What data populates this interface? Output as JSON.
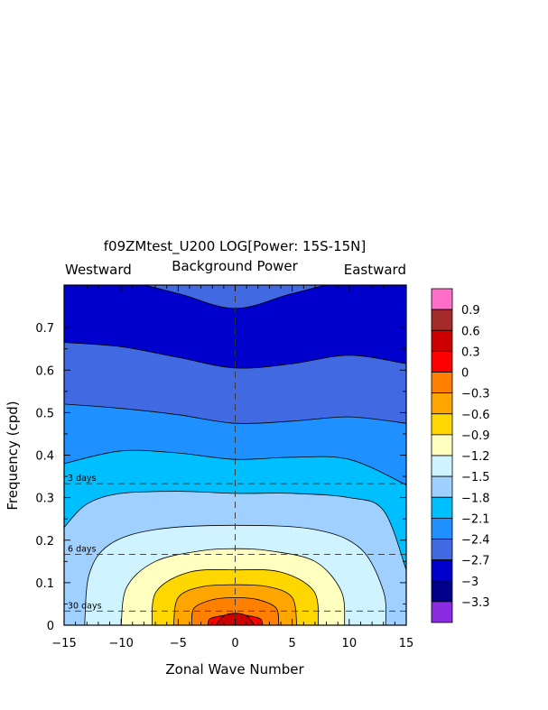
{
  "chart_data": {
    "type": "heatmap",
    "title": "f09ZMtest_U200 LOG[Power: 15S-15N]",
    "subtitle": "Background Power",
    "left_label": "Westward",
    "right_label": "Eastward",
    "xlabel": "Zonal Wave Number",
    "ylabel": "Frequency (cpd)",
    "xlim": [
      -15,
      15
    ],
    "ylim": [
      0,
      0.8
    ],
    "x_ticks": [
      "−15",
      "−10",
      "−5",
      "0",
      "5",
      "10",
      "15"
    ],
    "y_ticks": [
      "0",
      "0.1",
      "0.2",
      "0.3",
      "0.4",
      "0.5",
      "0.6",
      "0.7"
    ],
    "period_lines": [
      {
        "label": "3 days",
        "frequency": 0.333
      },
      {
        "label": "6 days",
        "frequency": 0.1667
      },
      {
        "label": "30 days",
        "frequency": 0.0333
      }
    ],
    "colorbar": {
      "labels": [
        "0.9",
        "0.6",
        "0.3",
        "0",
        "−0.3",
        "−0.6",
        "−0.9",
        "−1.2",
        "−1.5",
        "−1.8",
        "−2.1",
        "−2.4",
        "−2.7",
        "−3",
        "−3.3"
      ],
      "colors": [
        "#ff6ec7",
        "#a52a2a",
        "#cd0000",
        "#ff0000",
        "#ff7f00",
        "#ffa500",
        "#ffd700",
        "#ffffc0",
        "#d0f4ff",
        "#a0d0ff",
        "#00bfff",
        "#1e90ff",
        "#4169e1",
        "#0000cd",
        "#00008b",
        "#8a2be2"
      ]
    },
    "contours": [
      {
        "level": -2.7,
        "color": "#0000cd",
        "profile": [
          [
            -15,
            0.81
          ],
          [
            -10,
            0.81
          ],
          [
            -5,
            0.78
          ],
          [
            0,
            0.745
          ],
          [
            5,
            0.78
          ],
          [
            10,
            0.81
          ],
          [
            15,
            0.81
          ]
        ]
      },
      {
        "level": -2.4,
        "color": "#4169e1",
        "profile": [
          [
            -15,
            0.665
          ],
          [
            -10,
            0.655
          ],
          [
            -5,
            0.63
          ],
          [
            0,
            0.605
          ],
          [
            5,
            0.615
          ],
          [
            10,
            0.635
          ],
          [
            15,
            0.615
          ]
        ]
      },
      {
        "level": -2.1,
        "color": "#1e90ff",
        "profile": [
          [
            -15,
            0.52
          ],
          [
            -10,
            0.51
          ],
          [
            -5,
            0.495
          ],
          [
            0,
            0.475
          ],
          [
            5,
            0.48
          ],
          [
            10,
            0.49
          ],
          [
            15,
            0.475
          ]
        ]
      },
      {
        "level": -1.8,
        "color": "#00bfff",
        "profile": [
          [
            -15,
            0.38
          ],
          [
            -10,
            0.41
          ],
          [
            -5,
            0.405
          ],
          [
            0,
            0.39
          ],
          [
            5,
            0.395
          ],
          [
            10,
            0.39
          ],
          [
            15,
            0.33
          ]
        ]
      },
      {
        "level": -1.5,
        "color": "#a0d0ff",
        "profile": [
          [
            -15,
            0.23
          ],
          [
            -13,
            0.285
          ],
          [
            -10,
            0.31
          ],
          [
            -5,
            0.315
          ],
          [
            0,
            0.31
          ],
          [
            5,
            0.31
          ],
          [
            10,
            0.3
          ],
          [
            13,
            0.27
          ],
          [
            15,
            0.13
          ]
        ]
      }
    ],
    "closed_contours": [
      {
        "level": -1.2,
        "color": "#d0f4ff",
        "points": [
          [
            -13.2,
            0
          ],
          [
            -12.8,
            0.12
          ],
          [
            -11,
            0.19
          ],
          [
            -7,
            0.225
          ],
          [
            0,
            0.235
          ],
          [
            7,
            0.225
          ],
          [
            11,
            0.18
          ],
          [
            13,
            0.08
          ],
          [
            13.2,
            0
          ]
        ]
      },
      {
        "level": -0.9,
        "color": "#ffffc0",
        "points": [
          [
            -10,
            0
          ],
          [
            -9.5,
            0.09
          ],
          [
            -7,
            0.15
          ],
          [
            -3,
            0.175
          ],
          [
            0,
            0.18
          ],
          [
            3,
            0.175
          ],
          [
            7,
            0.15
          ],
          [
            9.3,
            0.08
          ],
          [
            9.6,
            0
          ]
        ]
      },
      {
        "level": -0.6,
        "color": "#ffd700",
        "points": [
          [
            -7.3,
            0
          ],
          [
            -6.9,
            0.08
          ],
          [
            -4,
            0.125
          ],
          [
            0,
            0.13
          ],
          [
            4,
            0.125
          ],
          [
            6.9,
            0.08
          ],
          [
            7.3,
            0
          ]
        ]
      },
      {
        "level": -0.3,
        "color": "#ffa500",
        "points": [
          [
            -5.4,
            0
          ],
          [
            -5,
            0.065
          ],
          [
            -3,
            0.09
          ],
          [
            0,
            0.095
          ],
          [
            3,
            0.09
          ],
          [
            5,
            0.065
          ],
          [
            5.4,
            0
          ]
        ]
      },
      {
        "level": 0,
        "color": "#ff7f00",
        "points": [
          [
            -3.8,
            0
          ],
          [
            -3.6,
            0.04
          ],
          [
            -2,
            0.06
          ],
          [
            0,
            0.065
          ],
          [
            2,
            0.06
          ],
          [
            3.6,
            0.04
          ],
          [
            3.8,
            0
          ]
        ]
      },
      {
        "level": 0.3,
        "color": "#ff0000",
        "points": [
          [
            -2.4,
            0
          ],
          [
            -2.2,
            0.015
          ],
          [
            -1,
            0.023
          ],
          [
            0,
            0.024
          ],
          [
            1,
            0.023
          ],
          [
            2.2,
            0.015
          ],
          [
            2.4,
            0
          ]
        ]
      },
      {
        "level": 0.6,
        "color": "#cd0000",
        "points": [
          [
            -1.7,
            0
          ],
          [
            -1,
            0.022
          ],
          [
            0,
            0.028
          ],
          [
            1,
            0.022
          ],
          [
            1.7,
            0
          ]
        ]
      }
    ],
    "base_color": "#4169e1",
    "grid": false,
    "colorbar_position": "right"
  }
}
